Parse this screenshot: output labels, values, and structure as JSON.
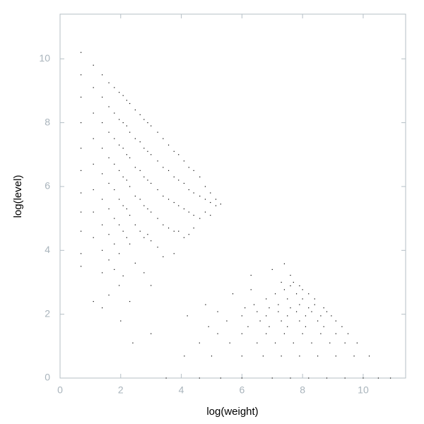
{
  "chart_data": {
    "type": "scatter",
    "xlabel": "log(weight)",
    "ylabel": "log(level)",
    "color": "#000000",
    "xlim": [
      0,
      11.4
    ],
    "ylim": [
      0,
      11.4
    ],
    "xticks": [
      0,
      2,
      4,
      6,
      8,
      10
    ],
    "yticks": [
      0,
      2,
      4,
      6,
      8,
      10
    ],
    "x": [
      0.69,
      0.69,
      0.69,
      0.69,
      0.69,
      0.69,
      0.69,
      0.69,
      0.69,
      0.69,
      0.69,
      1.1,
      1.1,
      1.1,
      1.1,
      1.1,
      1.1,
      1.1,
      1.1,
      1.1,
      1.39,
      1.39,
      1.39,
      1.39,
      1.39,
      1.39,
      1.39,
      1.39,
      1.39,
      1.39,
      1.61,
      1.61,
      1.61,
      1.61,
      1.61,
      1.61,
      1.61,
      1.61,
      1.61,
      1.79,
      1.79,
      1.79,
      1.79,
      1.79,
      1.79,
      1.79,
      1.79,
      1.95,
      1.95,
      1.95,
      1.95,
      1.95,
      1.95,
      1.95,
      1.95,
      2.08,
      2.08,
      2.08,
      2.08,
      2.08,
      2.08,
      2.08,
      2.2,
      2.2,
      2.2,
      2.2,
      2.2,
      2.2,
      2.3,
      2.3,
      2.3,
      2.3,
      2.3,
      2.3,
      2.3,
      2.48,
      2.48,
      2.48,
      2.48,
      2.48,
      2.48,
      2.64,
      2.64,
      2.64,
      2.64,
      2.64,
      2.77,
      2.77,
      2.77,
      2.77,
      2.77,
      2.77,
      2.89,
      2.89,
      2.89,
      2.89,
      2.89,
      3.0,
      3.0,
      3.0,
      3.0,
      3.0,
      3.0,
      3.22,
      3.22,
      3.22,
      3.22,
      3.22,
      3.4,
      3.4,
      3.4,
      3.4,
      3.4,
      3.58,
      3.58,
      3.58,
      3.58,
      3.76,
      3.76,
      3.76,
      3.76,
      3.76,
      3.91,
      3.91,
      3.91,
      3.91,
      4.09,
      4.09,
      4.09,
      4.09,
      4.25,
      4.25,
      4.25,
      4.25,
      4.41,
      4.41,
      4.41,
      4.41,
      4.61,
      4.61,
      4.61,
      4.79,
      4.79,
      4.79,
      4.96,
      4.96,
      4.96,
      5.14,
      5.14,
      5.3,
      3.5,
      4.6,
      5.3,
      6.0,
      7.0,
      7.6,
      8.2,
      8.8,
      9.4,
      10.0,
      10.5,
      10.9,
      4.1,
      5.0,
      6.0,
      6.7,
      7.3,
      7.9,
      8.5,
      9.1,
      9.7,
      10.2,
      2.4,
      4.6,
      5.6,
      6.5,
      7.1,
      7.7,
      8.3,
      8.9,
      9.4,
      9.8,
      3.0,
      5.2,
      6.0,
      6.8,
      7.4,
      8.0,
      8.6,
      9.1,
      9.5,
      4.9,
      6.2,
      6.9,
      7.5,
      8.1,
      8.7,
      9.3,
      2.0,
      5.5,
      6.6,
      7.3,
      7.9,
      8.5,
      9.1,
      4.2,
      6.0,
      6.8,
      7.5,
      8.1,
      8.6,
      8.95,
      5.2,
      6.5,
      7.2,
      7.8,
      8.3,
      8.8,
      6.1,
      6.9,
      7.6,
      8.2,
      8.7,
      4.8,
      6.4,
      7.2,
      7.9,
      8.4,
      6.8,
      7.5,
      8.0,
      8.4,
      5.7,
      7.1,
      7.8,
      8.2,
      6.3,
      7.4,
      8.0,
      7.6,
      7.9,
      7.3,
      7.7,
      6.3,
      7.6,
      7.0,
      7.4
    ],
    "values": [
      10.2,
      9.5,
      8.8,
      8.0,
      7.2,
      6.5,
      5.8,
      5.2,
      4.6,
      3.9,
      3.5,
      9.8,
      9.1,
      8.3,
      7.5,
      6.7,
      5.9,
      5.2,
      4.4,
      2.4,
      9.5,
      8.8,
      8.0,
      7.2,
      6.4,
      5.6,
      4.8,
      4.0,
      3.3,
      2.2,
      9.25,
      8.5,
      7.7,
      6.9,
      6.1,
      5.3,
      4.5,
      3.7,
      2.6,
      9.1,
      8.3,
      7.5,
      6.7,
      5.9,
      5.0,
      4.2,
      3.4,
      8.95,
      8.1,
      7.3,
      6.5,
      5.6,
      4.8,
      3.9,
      2.9,
      8.85,
      8.0,
      7.2,
      6.3,
      5.4,
      4.6,
      3.2,
      8.7,
      7.9,
      7.0,
      6.2,
      5.3,
      4.4,
      8.6,
      7.7,
      6.9,
      6.0,
      5.1,
      4.2,
      2.4,
      8.4,
      7.5,
      6.6,
      5.7,
      4.8,
      3.6,
      8.25,
      7.4,
      6.5,
      5.6,
      4.6,
      8.1,
      7.2,
      6.3,
      5.4,
      4.4,
      3.3,
      8.0,
      7.1,
      6.2,
      5.3,
      4.5,
      7.9,
      7.0,
      6.1,
      5.2,
      4.3,
      2.9,
      7.7,
      6.8,
      5.9,
      5.0,
      4.1,
      7.5,
      6.6,
      5.7,
      4.8,
      3.8,
      7.3,
      6.5,
      5.6,
      4.7,
      7.1,
      6.3,
      5.5,
      4.6,
      3.9,
      7.0,
      6.2,
      5.4,
      4.6,
      6.8,
      6.1,
      5.3,
      4.4,
      6.6,
      5.9,
      5.2,
      4.5,
      6.5,
      5.8,
      5.1,
      4.7,
      6.3,
      5.7,
      5.0,
      6.0,
      5.6,
      5.2,
      5.8,
      5.5,
      5.1,
      5.6,
      5.4,
      5.45,
      0,
      0,
      0,
      0,
      0,
      0,
      0,
      0,
      0,
      0,
      0,
      0,
      0.69,
      0.69,
      0.69,
      0.69,
      0.69,
      0.69,
      0.69,
      0.69,
      0.69,
      0.69,
      1.1,
      1.1,
      1.1,
      1.1,
      1.1,
      1.1,
      1.1,
      1.1,
      1.1,
      1.1,
      1.39,
      1.39,
      1.39,
      1.39,
      1.39,
      1.39,
      1.39,
      1.39,
      1.39,
      1.61,
      1.61,
      1.61,
      1.61,
      1.61,
      1.61,
      1.61,
      1.79,
      1.79,
      1.79,
      1.79,
      1.79,
      1.79,
      1.79,
      1.95,
      1.95,
      1.95,
      1.95,
      1.95,
      1.95,
      1.95,
      2.08,
      2.08,
      2.08,
      2.08,
      2.08,
      2.08,
      2.2,
      2.2,
      2.2,
      2.2,
      2.2,
      2.3,
      2.3,
      2.3,
      2.3,
      2.3,
      2.48,
      2.48,
      2.48,
      2.48,
      2.64,
      2.64,
      2.64,
      2.64,
      2.77,
      2.77,
      2.77,
      2.89,
      2.89,
      3.0,
      3.0,
      3.22,
      3.22,
      3.4,
      3.58
    ]
  }
}
